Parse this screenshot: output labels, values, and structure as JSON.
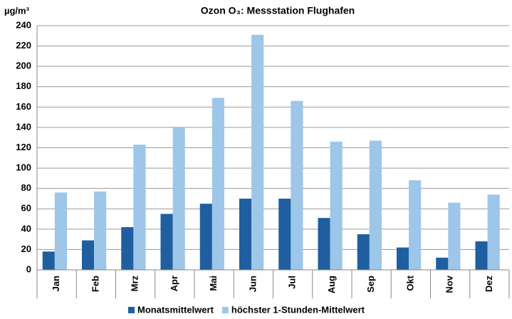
{
  "chart_data": {
    "type": "bar",
    "title": "Ozon O₃: Messstation Flughafen",
    "y_label": "µg/m³",
    "categories": [
      "Jan",
      "Feb",
      "Mrz",
      "Apr",
      "Mai",
      "Jun",
      "Jul",
      "Aug",
      "Sep",
      "Okt",
      "Nov",
      "Dez"
    ],
    "series": [
      {
        "name": "Monatsmittelwert",
        "color": "#1f5fa0",
        "values": [
          18,
          29,
          42,
          55,
          65,
          70,
          70,
          51,
          35,
          22,
          12,
          28
        ]
      },
      {
        "name": "höchster 1-Stunden-Mittelwert",
        "color": "#9dc6e8",
        "values": [
          76,
          77,
          123,
          140,
          169,
          231,
          166,
          126,
          127,
          88,
          66,
          74
        ]
      }
    ],
    "ylim": [
      0,
      240
    ],
    "yticks": [
      0,
      20,
      40,
      60,
      80,
      100,
      120,
      140,
      160,
      180,
      200,
      220,
      240
    ],
    "grid": true
  }
}
